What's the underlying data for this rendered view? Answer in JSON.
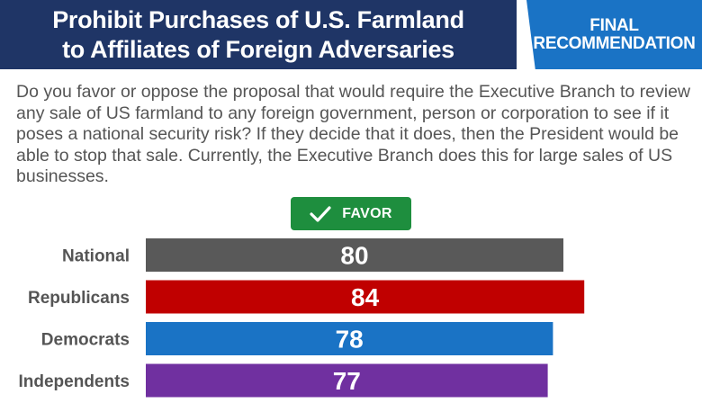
{
  "title": {
    "line1": "Prohibit Purchases of U.S. Farmland",
    "line2": "to Affiliates of Foreign Adversaries"
  },
  "badge": {
    "line1": "FINAL",
    "line2": "RECOMMENDATION"
  },
  "question": "Do you favor or oppose the proposal that would require the Executive Branch to review any sale of US farmland to any foreign government, person or corporation to see if it poses a national security risk? If they decide that it does, then the President would be able to stop that sale. Currently, the Executive Branch does this for large sales of US businesses.",
  "favor": {
    "label": "FAVOR",
    "icon": "checkmark-icon",
    "color": "#1e8e3e"
  },
  "colors": {
    "title_bg": "#1f3566",
    "badge_bg": "#1a73c5",
    "text": "#555555"
  },
  "chart_data": {
    "type": "bar",
    "orientation": "horizontal",
    "categories": [
      "National",
      "Republicans",
      "Democrats",
      "Independents"
    ],
    "values": [
      80,
      84,
      78,
      77
    ],
    "colors": [
      "#595959",
      "#c00000",
      "#1a73c5",
      "#7030a0"
    ],
    "value_labels": [
      "80",
      "84",
      "78",
      "77"
    ],
    "series": [
      {
        "name": "FAVOR",
        "values": [
          80,
          84,
          78,
          77
        ]
      }
    ],
    "xlim": [
      0,
      100
    ],
    "grid": false
  }
}
